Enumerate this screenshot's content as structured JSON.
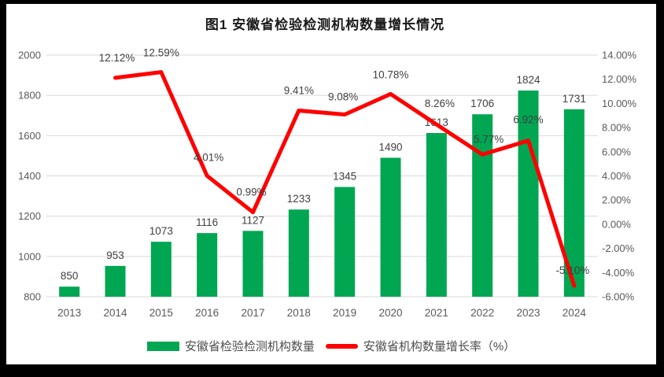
{
  "chart_data": {
    "type": "combo-bar-line",
    "title": "图1 安徽省检验检测机构数量增长情况",
    "categories": [
      "2013",
      "2014",
      "2015",
      "2016",
      "2017",
      "2018",
      "2019",
      "2020",
      "2021",
      "2022",
      "2023",
      "2024"
    ],
    "series": [
      {
        "name": "安徽省检验检测机构数量",
        "type": "bar",
        "axis": "left",
        "color": "#00A651",
        "values": [
          850,
          953,
          1073,
          1116,
          1127,
          1233,
          1345,
          1490,
          1613,
          1706,
          1824,
          1731
        ],
        "labels": [
          "850",
          "953",
          "1073",
          "1116",
          "1127",
          "1233",
          "1345",
          "1490",
          "1613",
          "1706",
          "1824",
          "1731"
        ]
      },
      {
        "name": "安徽省机构数量增长率（%）",
        "type": "line",
        "axis": "right",
        "color": "#FF0000",
        "values": [
          null,
          12.12,
          12.59,
          4.01,
          0.99,
          9.41,
          9.08,
          10.78,
          8.26,
          5.77,
          6.92,
          -5.1
        ],
        "labels": [
          "",
          "12.12%",
          "12.59%",
          "4.01%",
          "0.99%",
          "9.41%",
          "9.08%",
          "10.78%",
          "8.26%",
          "5.77%",
          "6.92%",
          "-5.10%"
        ]
      }
    ],
    "left_axis": {
      "min": 800,
      "max": 2000,
      "step": 200,
      "ticks": [
        "2000",
        "1800",
        "1600",
        "1400",
        "1200",
        "1000",
        "800"
      ]
    },
    "right_axis": {
      "min": -6,
      "max": 14,
      "step": 2,
      "ticks": [
        "14.00%",
        "12.00%",
        "10.00%",
        "8.00%",
        "6.00%",
        "4.00%",
        "2.00%",
        "0.00%",
        "-2.00%",
        "-4.00%",
        "-6.00%"
      ]
    },
    "legend": {
      "position": "bottom",
      "items": [
        "安徽省检验检测机构数量",
        "安徽省机构数量增长率（%）"
      ]
    },
    "style": {
      "gridline_color": "#D9D9D9",
      "axis_text_color": "#595959",
      "data_label_color": "#404040",
      "frame_color": "#000000",
      "background": "#FFFFFF"
    }
  }
}
